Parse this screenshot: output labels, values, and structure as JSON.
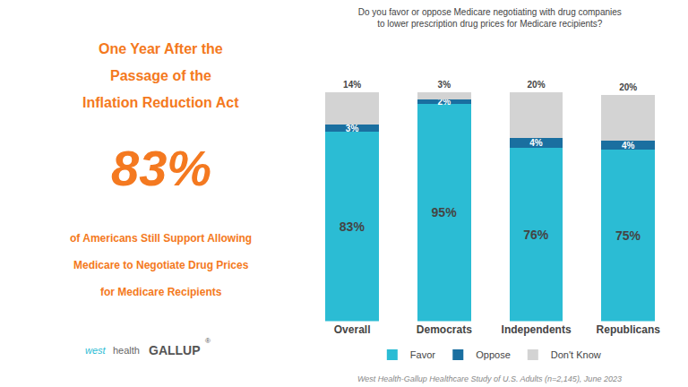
{
  "chart_data": {
    "type": "bar",
    "stacked": true,
    "title": "Do you favor or oppose Medicare negotiating with drug companies\nto lower prescription drug prices for Medicare recipients?",
    "categories": [
      "Overall",
      "Democrats",
      "Independents",
      "Republicans"
    ],
    "series": [
      {
        "name": "Favor",
        "color": "#2bbcd4",
        "values": [
          83,
          95,
          76,
          75
        ],
        "value_labels": [
          "83%",
          "95%",
          "76%",
          "75%"
        ]
      },
      {
        "name": "Oppose",
        "color": "#1a6fa0",
        "values": [
          3,
          2,
          4,
          4
        ],
        "value_labels": [
          "3%",
          "2%",
          "4%",
          "4%"
        ]
      },
      {
        "name": "Don't Know",
        "color": "#d3d3d3",
        "values": [
          14,
          3,
          20,
          20
        ],
        "value_labels": [
          "14%",
          "3%",
          "20%",
          "20%"
        ]
      }
    ],
    "data_labels": true,
    "ylim": [
      0,
      105
    ],
    "yticks": [],
    "tick_labels": "x",
    "grid": false,
    "legend": "bottom",
    "annotations": [
      {
        "text": "One Year After the",
        "color": "#f47920"
      },
      {
        "text": "Passage of the",
        "color": "#f47920"
      },
      {
        "text": "Inflation Reduction Act",
        "color": "#f47920"
      },
      {
        "text": "83%",
        "color": "#f47920"
      },
      {
        "text": "of Americans Still Support Allowing",
        "color": "#f47920"
      },
      {
        "text": "Medicare to Negotiate Drug Prices",
        "color": "#f47920"
      },
      {
        "text": "for Medicare Recipients",
        "color": "#f47920"
      },
      {
        "text": "west",
        "color": "#2bbcd4"
      },
      {
        "text": "health",
        "color": "#666666"
      },
      {
        "text": "GALLUP",
        "color": "#555555"
      },
      {
        "text": "®",
        "color": "#555555"
      },
      {
        "text": "West Health-Gallup Healthcare Study of U.S. Adults (n=2,145), June 2023",
        "color": "#888888"
      }
    ]
  }
}
